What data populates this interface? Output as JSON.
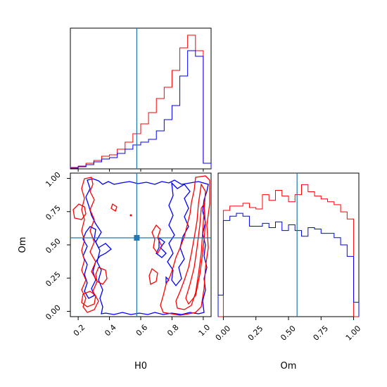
{
  "chart_data": {
    "type": "corner",
    "parameters": [
      "H0",
      "Om"
    ],
    "truth": {
      "H0": 0.58,
      "Om": 0.56
    },
    "colors": {
      "series_a": "#ff0000",
      "series_b": "#0000ff",
      "truth": "#1f77b4"
    },
    "grid": false,
    "panels": [
      {
        "id": "H0-marginal",
        "type": "histogram",
        "x_range": [
          0.15,
          1.05
        ],
        "x_ticks": [
          0.2,
          0.4,
          0.6,
          0.8,
          1.0
        ],
        "bin_edges": [
          0.15,
          0.2,
          0.25,
          0.3,
          0.35,
          0.4,
          0.45,
          0.5,
          0.55,
          0.6,
          0.65,
          0.7,
          0.75,
          0.8,
          0.85,
          0.9,
          0.95,
          1.0,
          1.05
        ],
        "series": [
          {
            "color": "red",
            "heights": [
              0.01,
              0.02,
              0.04,
              0.06,
              0.09,
              0.1,
              0.14,
              0.19,
              0.25,
              0.32,
              0.4,
              0.5,
              0.58,
              0.7,
              0.86,
              0.95,
              0.84,
              0.04
            ]
          },
          {
            "color": "blue",
            "heights": [
              0.005,
              0.015,
              0.03,
              0.05,
              0.07,
              0.08,
              0.11,
              0.14,
              0.17,
              0.19,
              0.21,
              0.27,
              0.35,
              0.45,
              0.66,
              0.84,
              0.8,
              0.04
            ]
          }
        ]
      },
      {
        "id": "H0-Om-contour",
        "type": "contour",
        "x_label": "H0",
        "y_label": "Om",
        "x_range": [
          0.15,
          1.05
        ],
        "y_range": [
          -0.04,
          1.04
        ],
        "x_ticks": [
          "0.2",
          "0.4",
          "0.6",
          "0.8",
          "1.0"
        ],
        "y_ticks": [
          "0.00",
          "0.25",
          "0.50",
          "0.75",
          "1.00"
        ]
      },
      {
        "id": "Om-marginal",
        "type": "histogram",
        "x_label": "Om",
        "x_range": [
          -0.04,
          1.04
        ],
        "x_ticks": [
          "0.00",
          "0.25",
          "0.50",
          "0.75",
          "1.00"
        ],
        "bin_edges": [
          -0.04,
          0.0,
          0.05,
          0.1,
          0.15,
          0.2,
          0.25,
          0.3,
          0.35,
          0.4,
          0.45,
          0.5,
          0.55,
          0.6,
          0.65,
          0.7,
          0.75,
          0.8,
          0.85,
          0.9,
          0.95,
          1.0,
          1.04
        ],
        "series": [
          {
            "color": "red",
            "heights": [
              0.0,
              0.74,
              0.77,
              0.77,
              0.79,
              0.76,
              0.75,
              0.85,
              0.81,
              0.88,
              0.84,
              0.8,
              0.85,
              0.92,
              0.87,
              0.84,
              0.82,
              0.8,
              0.78,
              0.73,
              0.68,
              0.0
            ]
          },
          {
            "color": "blue",
            "heights": [
              0.15,
              0.67,
              0.7,
              0.72,
              0.7,
              0.63,
              0.63,
              0.65,
              0.62,
              0.66,
              0.6,
              0.64,
              0.6,
              0.56,
              0.62,
              0.61,
              0.58,
              0.58,
              0.55,
              0.5,
              0.42,
              0.1
            ]
          }
        ]
      }
    ]
  }
}
